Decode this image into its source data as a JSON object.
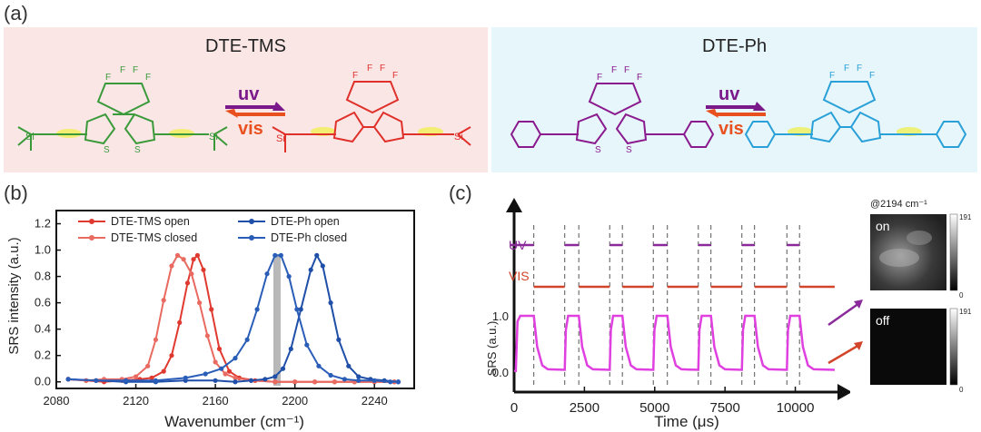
{
  "panel_letters": {
    "a": "(a)",
    "b": "(b)",
    "c": "(c)"
  },
  "scheme": {
    "left": {
      "title": "DTE-TMS",
      "uv": "uv",
      "vis": "vis",
      "si": "Si",
      "s": "S",
      "f": "F"
    },
    "right": {
      "title": "DTE-Ph",
      "uv": "uv",
      "vis": "vis",
      "s": "S",
      "f": "F"
    },
    "colors": {
      "tms_open": "#3a9a3a",
      "tms_closed": "#e0302a",
      "ph_open": "#8a1a8e",
      "ph_closed": "#2aa0d8",
      "uv_arrow": "#7a1a8a",
      "vis_arrow": "#e85020",
      "glow": "#f0f040"
    }
  },
  "chart_data": [
    {
      "type": "line",
      "xlabel": "Wavenumber (cm⁻¹)",
      "ylabel": "SRS intensity (a.u.)",
      "xlim": [
        2080,
        2260
      ],
      "ylim": [
        -0.05,
        1.3
      ],
      "xticks": [
        2080,
        2120,
        2160,
        2200,
        2240
      ],
      "yticks": [
        0.0,
        0.2,
        0.4,
        0.6,
        0.8,
        1.0,
        1.2
      ],
      "legend_position": "top",
      "highlight_band": {
        "x": 2191,
        "color": "#b8b8b8"
      },
      "series": [
        {
          "name": "DTE-TMS open",
          "color": "#e03a30",
          "x": [
            2086,
            2095,
            2104,
            2113,
            2122,
            2128,
            2134,
            2138,
            2142,
            2146,
            2149,
            2151,
            2154,
            2158,
            2162,
            2167,
            2172,
            2180,
            2190,
            2200,
            2210,
            2220,
            2230,
            2240,
            2250
          ],
          "y": [
            0.02,
            0.01,
            0.0,
            0.01,
            0.02,
            0.03,
            0.08,
            0.2,
            0.45,
            0.75,
            0.93,
            0.96,
            0.85,
            0.55,
            0.25,
            0.08,
            0.03,
            0.01,
            0.0,
            0.0,
            0.0,
            0.0,
            0.0,
            0.0,
            0.0
          ]
        },
        {
          "name": "DTE-TMS closed",
          "color": "#e86a60",
          "x": [
            2086,
            2095,
            2104,
            2113,
            2120,
            2126,
            2130,
            2134,
            2138,
            2141,
            2144,
            2148,
            2152,
            2156,
            2160,
            2165,
            2170,
            2178,
            2190,
            2200,
            2210,
            2220,
            2230,
            2240,
            2250
          ],
          "y": [
            0.02,
            0.01,
            0.02,
            0.02,
            0.04,
            0.12,
            0.32,
            0.62,
            0.88,
            0.96,
            0.93,
            0.82,
            0.6,
            0.35,
            0.15,
            0.06,
            0.03,
            0.01,
            0.0,
            0.0,
            0.0,
            0.0,
            0.0,
            0.0,
            0.0
          ]
        },
        {
          "name": "DTE-Ph open",
          "color": "#1f4fa8",
          "x": [
            2086,
            2100,
            2115,
            2130,
            2145,
            2160,
            2170,
            2178,
            2185,
            2190,
            2194,
            2198,
            2203,
            2208,
            2211,
            2214,
            2218,
            2222,
            2227,
            2232,
            2238,
            2245,
            2252
          ],
          "y": [
            0.02,
            0.01,
            0.0,
            0.0,
            0.01,
            0.01,
            0.0,
            0.01,
            0.02,
            0.04,
            0.1,
            0.25,
            0.55,
            0.85,
            0.96,
            0.88,
            0.6,
            0.32,
            0.12,
            0.04,
            0.02,
            0.01,
            0.0
          ]
        },
        {
          "name": "DTE-Ph closed",
          "color": "#2a5db8",
          "x": [
            2086,
            2100,
            2115,
            2130,
            2145,
            2155,
            2163,
            2170,
            2176,
            2181,
            2186,
            2190,
            2193,
            2197,
            2201,
            2206,
            2212,
            2218,
            2225,
            2232,
            2240,
            2248,
            2252
          ],
          "y": [
            0.02,
            0.01,
            0.01,
            0.01,
            0.03,
            0.06,
            0.1,
            0.18,
            0.32,
            0.55,
            0.82,
            0.96,
            0.96,
            0.8,
            0.55,
            0.28,
            0.12,
            0.05,
            0.02,
            0.01,
            0.01,
            0.0,
            0.0
          ]
        }
      ]
    },
    {
      "type": "line",
      "xlabel": "Time (μs)",
      "ylabel": "SRS (a.u.)",
      "xlim": [
        0,
        11500
      ],
      "xticks": [
        0,
        2500,
        5000,
        7500,
        10000
      ],
      "yticks": [
        0.0,
        1.0
      ],
      "uv_label": "UV",
      "vis_label": "VIS",
      "uv_color": "#8a2a9a",
      "vis_color": "#d2452a",
      "trace_color": "#e040e0",
      "uv_on_intervals": [
        [
          0,
          700
        ],
        [
          1800,
          2300
        ],
        [
          3400,
          3850
        ],
        [
          4950,
          5450
        ],
        [
          6550,
          7000
        ],
        [
          8100,
          8550
        ],
        [
          9700,
          10150
        ]
      ],
      "vis_on_intervals": [
        [
          700,
          1800
        ],
        [
          2300,
          3400
        ],
        [
          3850,
          4950
        ],
        [
          5450,
          6550
        ],
        [
          7000,
          8100
        ],
        [
          8550,
          9700
        ],
        [
          10150,
          11400
        ]
      ],
      "dashed_times": [
        700,
        1800,
        2300,
        3400,
        3850,
        4950,
        5450,
        6550,
        7000,
        8100,
        8550,
        9700,
        10150
      ]
    }
  ],
  "inset": {
    "title": "@2194 cm⁻¹",
    "on_label": "on",
    "off_label": "off",
    "colorbar_max": "191",
    "colorbar_min": "0",
    "arrow_up_color": "#8a2a9a",
    "arrow_down_color": "#d2452a"
  }
}
